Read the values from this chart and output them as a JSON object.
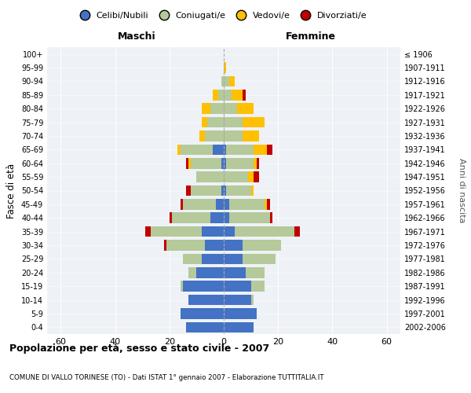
{
  "age_groups": [
    "0-4",
    "5-9",
    "10-14",
    "15-19",
    "20-24",
    "25-29",
    "30-34",
    "35-39",
    "40-44",
    "45-49",
    "50-54",
    "55-59",
    "60-64",
    "65-69",
    "70-74",
    "75-79",
    "80-84",
    "85-89",
    "90-94",
    "95-99",
    "100+"
  ],
  "birth_years": [
    "2002-2006",
    "1997-2001",
    "1992-1996",
    "1987-1991",
    "1982-1986",
    "1977-1981",
    "1972-1976",
    "1967-1971",
    "1962-1966",
    "1957-1961",
    "1952-1956",
    "1947-1951",
    "1942-1946",
    "1937-1941",
    "1932-1936",
    "1927-1931",
    "1922-1926",
    "1917-1921",
    "1912-1916",
    "1907-1911",
    "≤ 1906"
  ],
  "male": {
    "celibi": [
      14,
      16,
      13,
      15,
      10,
      8,
      7,
      8,
      5,
      3,
      1,
      0,
      1,
      4,
      0,
      0,
      0,
      0,
      0,
      0,
      0
    ],
    "coniugati": [
      0,
      0,
      0,
      1,
      3,
      7,
      14,
      19,
      14,
      12,
      11,
      10,
      11,
      12,
      7,
      6,
      5,
      2,
      1,
      0,
      0
    ],
    "vedovi": [
      0,
      0,
      0,
      0,
      0,
      0,
      0,
      0,
      0,
      0,
      0,
      0,
      1,
      1,
      2,
      2,
      3,
      2,
      0,
      0,
      0
    ],
    "divorziati": [
      0,
      0,
      0,
      0,
      0,
      0,
      1,
      2,
      1,
      1,
      2,
      0,
      1,
      0,
      0,
      0,
      0,
      0,
      0,
      0,
      0
    ]
  },
  "female": {
    "nubili": [
      11,
      12,
      10,
      10,
      8,
      7,
      7,
      4,
      2,
      2,
      1,
      0,
      1,
      1,
      0,
      0,
      0,
      0,
      0,
      0,
      0
    ],
    "coniugate": [
      0,
      0,
      1,
      5,
      7,
      12,
      14,
      22,
      15,
      13,
      9,
      9,
      10,
      10,
      7,
      7,
      5,
      3,
      2,
      0,
      0
    ],
    "vedove": [
      0,
      0,
      0,
      0,
      0,
      0,
      0,
      0,
      0,
      1,
      1,
      2,
      1,
      5,
      6,
      8,
      6,
      4,
      2,
      1,
      0
    ],
    "divorziate": [
      0,
      0,
      0,
      0,
      0,
      0,
      0,
      2,
      1,
      1,
      0,
      2,
      1,
      2,
      0,
      0,
      0,
      1,
      0,
      0,
      0
    ]
  },
  "colors": {
    "celibi": "#4472c4",
    "coniugati": "#b5c99a",
    "vedovi": "#ffc000",
    "divorziati": "#c00000"
  },
  "title": "Popolazione per età, sesso e stato civile - 2007",
  "subtitle": "COMUNE DI VALLO TORINESE (TO) - Dati ISTAT 1° gennaio 2007 - Elaborazione TUTTITALIA.IT",
  "xlabel_left": "Maschi",
  "xlabel_right": "Femmine",
  "ylabel": "Fasce di età",
  "ylabel_right": "Anni di nascita",
  "xlim": 65,
  "bg_color": "#ffffff",
  "plot_bg_color": "#eef2f7",
  "grid_color": "#cccccc",
  "legend_labels": [
    "Celibi/Nubili",
    "Coniugati/e",
    "Vedovi/e",
    "Divorziati/e"
  ]
}
